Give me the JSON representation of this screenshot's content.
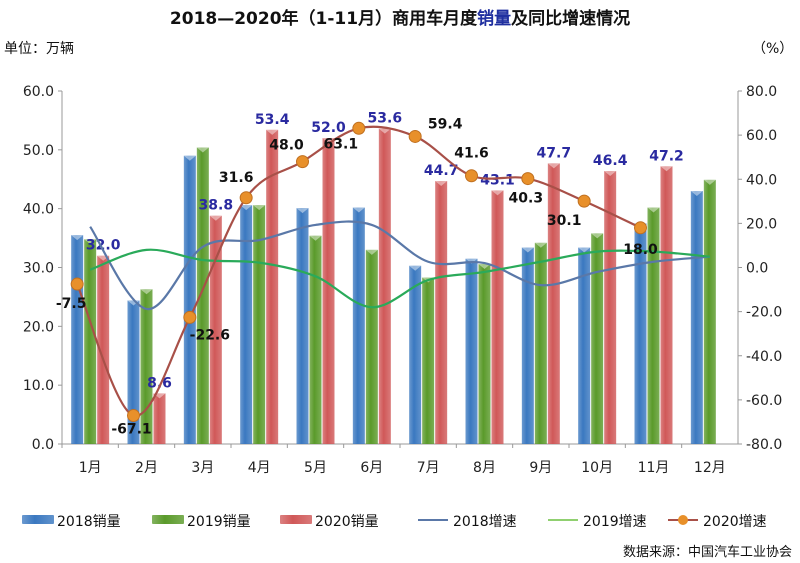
{
  "title": {
    "before": "2018—2020年（1-11月）商用车月度",
    "highlight": "销量",
    "after": "及同比增速情况",
    "highlight_color": "#2030a0"
  },
  "unit_left": "单位：万辆",
  "unit_right": "（%）",
  "source": "数据来源：中国汽车工业协会",
  "chart_data": {
    "type": "bar+line",
    "categories": [
      "1月",
      "2月",
      "3月",
      "4月",
      "5月",
      "6月",
      "7月",
      "8月",
      "9月",
      "10月",
      "11月",
      "12月"
    ],
    "y_left": {
      "range": [
        0,
        60
      ],
      "ticks": [
        "0.0",
        "10.0",
        "20.0",
        "30.0",
        "40.0",
        "50.0",
        "60.0"
      ],
      "label": "单位：万辆"
    },
    "y_right": {
      "range": [
        -80,
        80
      ],
      "ticks": [
        "-80.0",
        "-60.0",
        "-40.0",
        "-20.0",
        "0.0",
        "20.0",
        "40.0",
        "60.0",
        "80.0"
      ],
      "label": "（%）"
    },
    "grid": false,
    "legend_position": "bottom",
    "bar_series": [
      {
        "name": "2018销量",
        "color": "#3a78c0",
        "values": [
          35.5,
          24.4,
          49.0,
          40.6,
          40.1,
          40.2,
          30.3,
          31.5,
          33.4,
          33.4,
          37.5,
          43.0
        ]
      },
      {
        "name": "2019销量",
        "color": "#5a9a2a",
        "values": [
          34.8,
          26.3,
          50.4,
          40.6,
          35.4,
          33.0,
          28.3,
          30.6,
          34.2,
          35.8,
          40.2,
          44.9
        ]
      },
      {
        "name": "2020销量",
        "color": "#d05858",
        "values": [
          32.0,
          8.6,
          38.8,
          53.4,
          52.0,
          53.6,
          44.7,
          43.1,
          47.7,
          46.4,
          47.2,
          null
        ],
        "labels": [
          "32.0",
          "8.6",
          "38.8",
          "53.4",
          "52.0",
          "53.6",
          "44.7",
          "43.1",
          "47.7",
          "46.4",
          "47.2",
          ""
        ]
      }
    ],
    "line_series": [
      {
        "name": "2018增速",
        "color": "#5a78a8",
        "values": [
          18.5,
          -18.8,
          9.4,
          12.4,
          19.3,
          19.3,
          2.6,
          2.0,
          -8.0,
          -2.0,
          2.6,
          4.9
        ]
      },
      {
        "name": "2019增速",
        "color": "#2aaa5a",
        "legend_color": "#90d070",
        "values": [
          -1.0,
          8.0,
          3.4,
          2.2,
          -4.0,
          -18.0,
          -5.7,
          -2.0,
          2.6,
          7.2,
          7.2,
          4.9
        ]
      },
      {
        "name": "2020增速",
        "color": "#a85048",
        "marker_color": "#e8902a",
        "values": [
          -7.5,
          -67.1,
          -22.6,
          31.6,
          48.0,
          63.1,
          59.4,
          41.6,
          40.3,
          30.1,
          18.0,
          null
        ],
        "labels": [
          "-7.5",
          "-67.1",
          "-22.6",
          "31.6",
          "48.0",
          "63.1",
          "59.4",
          "41.6",
          "40.3",
          "30.1",
          "18.0",
          ""
        ]
      }
    ]
  }
}
